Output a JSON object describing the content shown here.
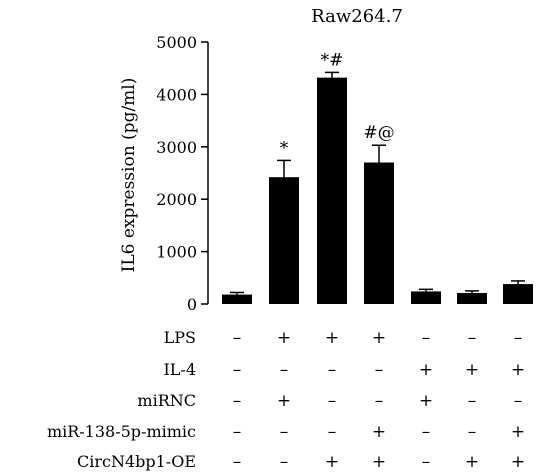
{
  "chart_data": {
    "type": "bar",
    "title": "Raw264.7",
    "ylabel": "IL6 expression (pg/ml)",
    "xlabel": "",
    "ylim": [
      0,
      5000
    ],
    "yticks": [
      "0",
      "1000",
      "2000",
      "3000",
      "4000",
      "5000"
    ],
    "values": [
      180,
      2420,
      4320,
      2700,
      240,
      210,
      380
    ],
    "errors": [
      40,
      320,
      100,
      330,
      40,
      40,
      60
    ],
    "annotations": [
      "",
      "*",
      "*#",
      "#@",
      "",
      "",
      ""
    ],
    "bar_color": "#000000",
    "conditions": [
      {
        "label": "LPS",
        "signs": [
          "–",
          "+",
          "+",
          "+",
          "–",
          "–",
          "–"
        ]
      },
      {
        "label": "IL-4",
        "signs": [
          "–",
          "–",
          "–",
          "–",
          "+",
          "+",
          "+"
        ]
      },
      {
        "label": "miRNC",
        "signs": [
          "–",
          "+",
          "–",
          "–",
          "+",
          "–",
          "–"
        ]
      },
      {
        "label": "miR-138-5p-mimic",
        "signs": [
          "–",
          "–",
          "–",
          "+",
          "–",
          "–",
          "+"
        ]
      },
      {
        "label": "CircN4bp1-OE",
        "signs": [
          "–",
          "–",
          "+",
          "+",
          "–",
          "+",
          "+"
        ]
      }
    ]
  }
}
